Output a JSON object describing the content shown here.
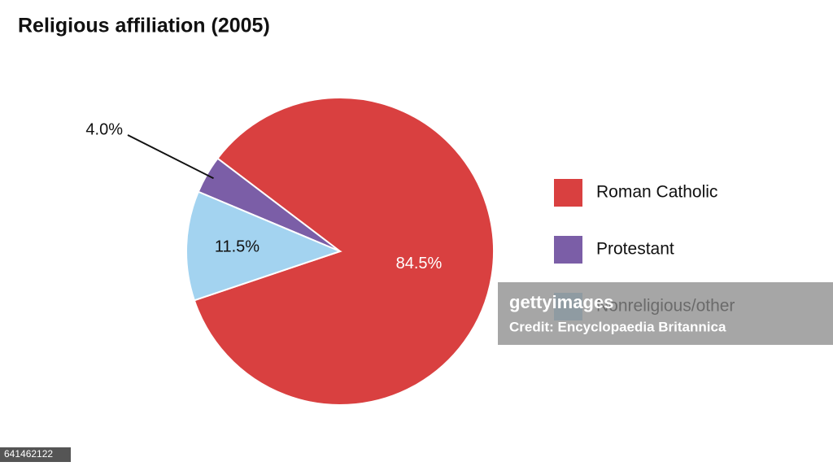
{
  "chart_data": {
    "type": "pie",
    "title": "Religious affiliation (2005)",
    "categories": [
      "Roman Catholic",
      "Protestant",
      "Nonreligious/other"
    ],
    "values": [
      84.5,
      4.0,
      11.5
    ],
    "value_labels": [
      "84.5%",
      "4.0%",
      "11.5%"
    ],
    "colors": [
      "#d94040",
      "#7b5ea7",
      "#a3d3f0"
    ],
    "legend": "right"
  },
  "watermark": {
    "brand": "gettyimages",
    "credit": "Credit: Encyclopaedia Britannica",
    "id": "641462122"
  }
}
